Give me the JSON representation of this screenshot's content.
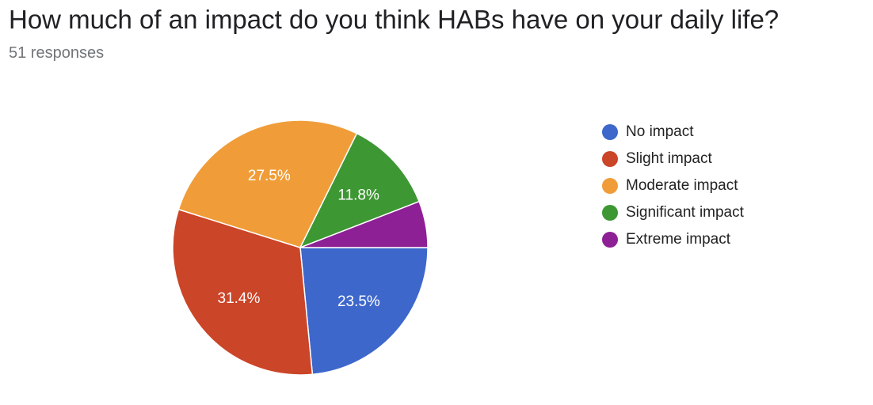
{
  "header": {
    "title": "How much of an impact do you think HABs have on your daily life?",
    "responses": "51 responses"
  },
  "chart_data": {
    "type": "pie",
    "categories": [
      "No impact",
      "Slight impact",
      "Moderate impact",
      "Significant impact",
      "Extreme impact"
    ],
    "values": [
      23.5,
      31.4,
      27.5,
      11.8,
      5.9
    ],
    "data_labels": [
      "23.5%",
      "31.4%",
      "27.5%",
      "11.8%",
      ""
    ],
    "colors": [
      "#3d67cb",
      "#cb4528",
      "#f09d39",
      "#3d9733",
      "#8d2095"
    ],
    "legend_position": "right"
  }
}
